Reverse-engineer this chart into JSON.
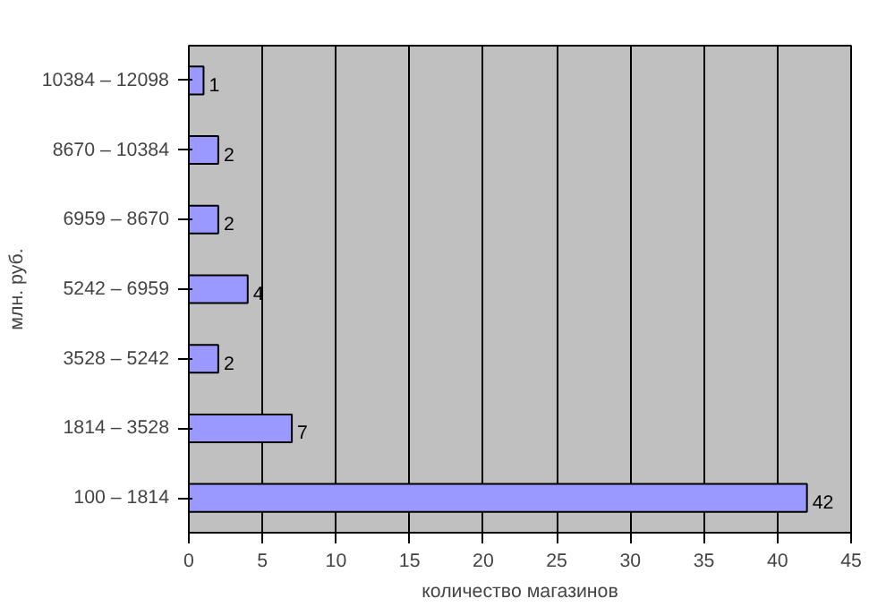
{
  "chart_data": {
    "type": "bar",
    "orientation": "horizontal",
    "xlabel": "количество магазинов",
    "ylabel": "млн. руб.",
    "categories": [
      "10384 – 12098",
      "8670 – 10384",
      "6959 – 8670",
      "5242 – 6959",
      "3528 – 5242",
      "1814 – 3528",
      "100 – 1814"
    ],
    "values": [
      1,
      2,
      2,
      4,
      2,
      7,
      42
    ],
    "color": "#9999ff",
    "data_labels": true,
    "xlim": [
      0,
      45
    ],
    "xticks": [
      0,
      5,
      10,
      15,
      20,
      25,
      30,
      35,
      40,
      45
    ],
    "grid": "x"
  }
}
